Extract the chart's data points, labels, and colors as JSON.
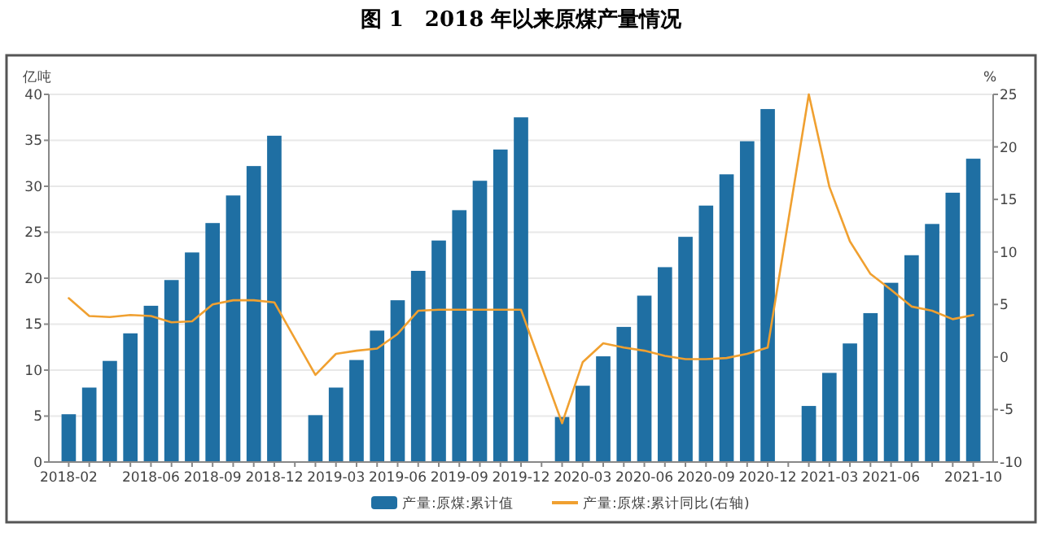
{
  "chart_data": {
    "type": "bar",
    "title": "图 1　2018 年以来原煤产量情况",
    "ylabel": "亿吨",
    "y2label": "%",
    "categories": [
      "2018-02",
      null,
      null,
      null,
      "2018-06",
      null,
      null,
      "2018-09",
      null,
      null,
      "2018-12",
      null,
      null,
      "2019-03",
      null,
      null,
      "2019-06",
      null,
      null,
      "2019-09",
      null,
      null,
      "2019-12",
      null,
      null,
      "2020-03",
      null,
      null,
      "2020-06",
      null,
      null,
      "2020-09",
      null,
      null,
      "2020-12",
      null,
      null,
      "2021-03",
      null,
      null,
      "2021-06",
      null,
      null,
      null,
      "2021-10"
    ],
    "series": [
      {
        "name": "产量:原煤:累计值",
        "color": "#1f6fa3",
        "values": [
          5.2,
          8.1,
          11.0,
          14.0,
          17.0,
          19.8,
          22.8,
          26.0,
          29.0,
          32.2,
          35.5,
          null,
          5.1,
          8.1,
          11.1,
          14.3,
          17.6,
          20.8,
          24.1,
          27.4,
          30.6,
          34.0,
          37.5,
          null,
          4.9,
          8.3,
          11.5,
          14.7,
          18.1,
          21.2,
          24.5,
          27.9,
          31.3,
          34.9,
          38.4,
          null,
          6.1,
          9.7,
          12.9,
          16.2,
          19.5,
          22.5,
          25.9,
          29.3,
          33.0
        ]
      },
      {
        "name": "产量:原煤:累计同比(右轴)",
        "type": "line",
        "axis": "y2",
        "color": "#f0a030",
        "values": [
          5.6,
          3.9,
          3.8,
          4.0,
          3.9,
          3.3,
          3.4,
          5.0,
          5.4,
          5.4,
          5.2,
          null,
          -1.7,
          0.3,
          0.6,
          0.8,
          2.2,
          4.4,
          4.5,
          4.5,
          4.5,
          4.5,
          4.5,
          null,
          -6.3,
          -0.5,
          1.3,
          0.9,
          0.6,
          0.1,
          -0.2,
          -0.2,
          -0.1,
          0.3,
          0.9,
          null,
          25.0,
          16.2,
          11.0,
          7.9,
          6.4,
          4.8,
          4.4,
          3.6,
          4.0
        ]
      }
    ],
    "ylim": [
      0,
      40
    ],
    "yticks": [
      0,
      5,
      10,
      15,
      20,
      25,
      30,
      35,
      40
    ],
    "y2lim": [
      -10,
      25
    ],
    "y2ticks": [
      -10,
      -5,
      0,
      5,
      10,
      15,
      20,
      25
    ],
    "grid": "y",
    "legend": "bottom"
  }
}
